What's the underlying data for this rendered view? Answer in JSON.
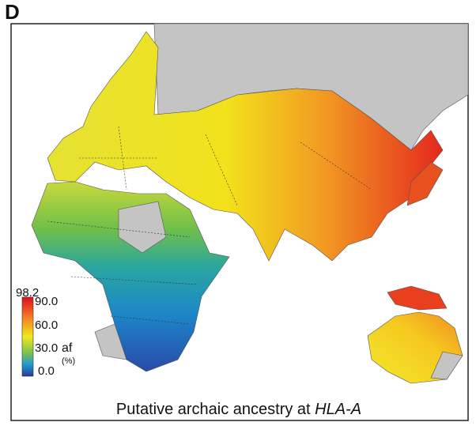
{
  "panel_label": "D",
  "legend": {
    "max_label": "98.2",
    "tick_labels": [
      "90.0",
      "60.0",
      "30.0",
      "0.0"
    ],
    "unit": "af",
    "unit_note": "(%)"
  },
  "caption": {
    "text": "Putative archaic ancestry at ",
    "gene": "HLA-A"
  }
}
